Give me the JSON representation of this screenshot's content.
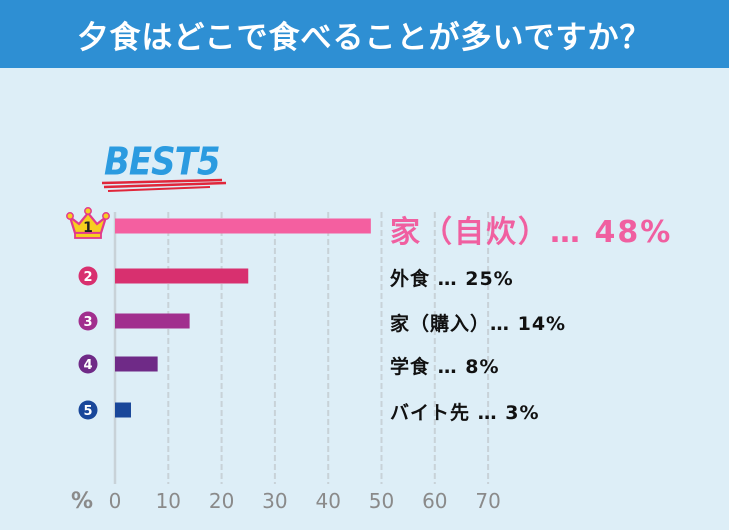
{
  "title": "夕食はどこで食べることが多いですか？",
  "badge": "BEST5",
  "colors": {
    "title_bg": "#2e8fd3",
    "page_bg": "#ddeef7",
    "grid": "#c8d2d8",
    "axis": "#8a8a8a",
    "first_label": "#f05fa0"
  },
  "chart_data": {
    "type": "bar",
    "orientation": "horizontal",
    "title": "夕食はどこで食べることが多いですか？",
    "xlabel": "%",
    "xlim": [
      0,
      70
    ],
    "x_ticks": [
      0,
      10,
      20,
      30,
      40,
      50,
      60,
      70
    ],
    "grid": true,
    "categories": [
      "家（自炊）",
      "外食",
      "家（購入）",
      "学食",
      "バイト先"
    ],
    "values": [
      48,
      25,
      14,
      8,
      3
    ],
    "labels": [
      "家（自炊）… 48%",
      "外食 … 25%",
      "家（購入）… 14%",
      "学食 … 8%",
      "バイト先 … 3%"
    ],
    "ranks": [
      "1",
      "2",
      "3",
      "4",
      "5"
    ],
    "bar_colors": [
      "#f45fa0",
      "#d8306f",
      "#a12f8e",
      "#6f2a87",
      "#19479a"
    ],
    "rank_icons": [
      "crown-icon",
      "rank-circle-icon",
      "rank-circle-icon",
      "rank-circle-icon",
      "rank-circle-icon"
    ]
  }
}
